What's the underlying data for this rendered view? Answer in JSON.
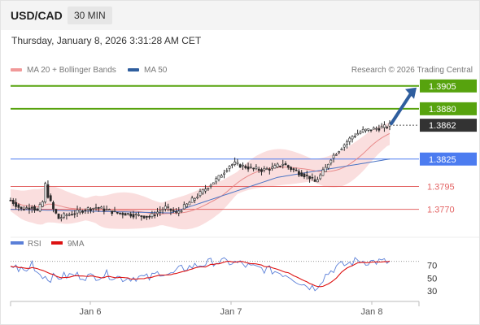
{
  "header": {
    "symbol": "USD/CAD",
    "timeframe": "30 MIN"
  },
  "datetime": "Thursday, January 8, 2026 3:31:28 AM CET",
  "legend": {
    "ma20_label": "MA 20 + Bollinger Bands",
    "ma50_label": "MA 50",
    "copyright": "Research © 2026 Trading Central"
  },
  "colors": {
    "background": "#ffffff",
    "header_bg": "#f4f4f4",
    "green": "#57a30e",
    "blue": "#4c7cf0",
    "red": "#e36464",
    "current": "#333333",
    "arrow": "#2f5e9e",
    "candle": "#2a2a2a",
    "bollinger_fill": "#f9d8d8",
    "ma20": "#e88a8a",
    "ma50": "#4a74c4",
    "rsi": "#5a7fd8",
    "rsi_ma": "#dd1111"
  },
  "chart_data": [
    {
      "type": "candlestick",
      "title": "USD/CAD 30 MIN",
      "x_labels": [
        "Jan 6",
        "Jan 7",
        "Jan 8"
      ],
      "levels": [
        {
          "value": 1.3905,
          "label": "1.3905",
          "kind": "resistance"
        },
        {
          "value": 1.388,
          "label": "1.3880",
          "kind": "resistance"
        },
        {
          "value": 1.3862,
          "label": "1.3862",
          "kind": "current"
        },
        {
          "value": 1.3825,
          "label": "1.3825",
          "kind": "pivot"
        },
        {
          "value": 1.3795,
          "label": "1.3795",
          "kind": "support"
        },
        {
          "value": 1.377,
          "label": "1.3770",
          "kind": "support"
        }
      ],
      "close_path": [
        [
          0,
          1.378
        ],
        [
          4,
          1.377
        ],
        [
          8,
          1.3773
        ],
        [
          10,
          1.3768
        ],
        [
          12,
          1.3778
        ],
        [
          13,
          1.3797
        ],
        [
          14,
          1.3785
        ],
        [
          16,
          1.377
        ],
        [
          18,
          1.376
        ],
        [
          20,
          1.3763
        ],
        [
          24,
          1.3766
        ],
        [
          28,
          1.377
        ],
        [
          32,
          1.3772
        ],
        [
          36,
          1.3769
        ],
        [
          40,
          1.3766
        ],
        [
          44,
          1.3765
        ],
        [
          48,
          1.3763
        ],
        [
          52,
          1.3762
        ],
        [
          55,
          1.3767
        ],
        [
          58,
          1.3772
        ],
        [
          62,
          1.3766
        ],
        [
          66,
          1.3775
        ],
        [
          70,
          1.3785
        ],
        [
          74,
          1.3795
        ],
        [
          78,
          1.3805
        ],
        [
          82,
          1.3818
        ],
        [
          84,
          1.382
        ],
        [
          86,
          1.3818
        ],
        [
          90,
          1.3815
        ],
        [
          94,
          1.3813
        ],
        [
          98,
          1.3815
        ],
        [
          102,
          1.382
        ],
        [
          104,
          1.3816
        ],
        [
          108,
          1.381
        ],
        [
          112,
          1.3805
        ],
        [
          114,
          1.38
        ],
        [
          116,
          1.3807
        ],
        [
          118,
          1.3815
        ],
        [
          120,
          1.3826
        ],
        [
          124,
          1.3838
        ],
        [
          128,
          1.385
        ],
        [
          132,
          1.3856
        ],
        [
          136,
          1.3858
        ],
        [
          140,
          1.386
        ],
        [
          142,
          1.3862
        ]
      ],
      "projection": {
        "from": 1.3862,
        "to": 1.3905
      },
      "bollinger_half_width": 0.0016,
      "ma50_path": [
        [
          0,
          1.377
        ],
        [
          60,
          1.3766
        ],
        [
          100,
          1.3805
        ],
        [
          142,
          1.3825
        ]
      ],
      "y_range": [
        1.3751,
        1.3911
      ]
    },
    {
      "type": "line",
      "title": "RSI",
      "series": [
        {
          "name": "RSI"
        },
        {
          "name": "9MA"
        }
      ],
      "rsi_path": [
        [
          0,
          70
        ],
        [
          6,
          60
        ],
        [
          8,
          75
        ],
        [
          10,
          60
        ],
        [
          14,
          50
        ],
        [
          18,
          52
        ],
        [
          24,
          55
        ],
        [
          30,
          52
        ],
        [
          36,
          56
        ],
        [
          42,
          50
        ],
        [
          48,
          52
        ],
        [
          52,
          50
        ],
        [
          56,
          60
        ],
        [
          60,
          55
        ],
        [
          64,
          65
        ],
        [
          70,
          70
        ],
        [
          76,
          76
        ],
        [
          82,
          75
        ],
        [
          86,
          73
        ],
        [
          90,
          67
        ],
        [
          94,
          65
        ],
        [
          98,
          62
        ],
        [
          104,
          55
        ],
        [
          110,
          40
        ],
        [
          114,
          35
        ],
        [
          118,
          55
        ],
        [
          122,
          68
        ],
        [
          126,
          72
        ],
        [
          130,
          78
        ],
        [
          134,
          76
        ],
        [
          138,
          76
        ],
        [
          142,
          75
        ]
      ],
      "yticks": [
        70,
        50,
        30
      ],
      "y_range": [
        20,
        90
      ]
    }
  ]
}
